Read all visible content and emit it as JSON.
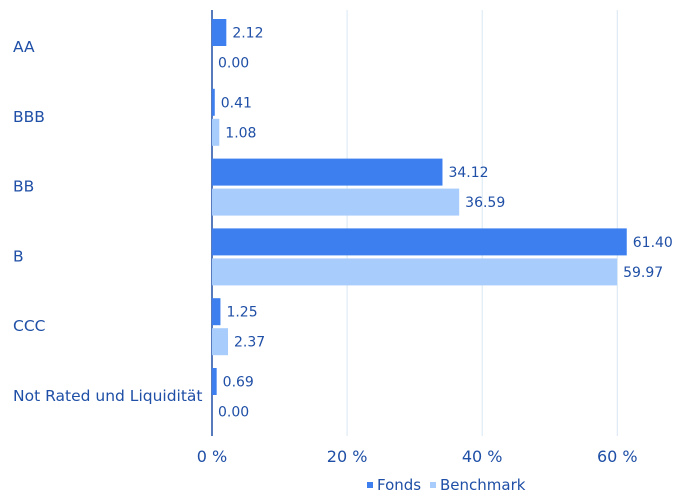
{
  "colors": {
    "fonds": "#3d7fef",
    "benchmark": "#a8cdfc",
    "text": "#1f4fa6",
    "grid": "#d8e6f3",
    "axis": "#1f4fa6"
  },
  "chart_data": {
    "type": "bar",
    "orientation": "horizontal",
    "categories": [
      "AA",
      "BBB",
      "BB",
      "B",
      "CCC",
      "Not Rated und Liquidität"
    ],
    "series": [
      {
        "name": "Fonds",
        "values": [
          2.12,
          0.41,
          34.12,
          61.4,
          1.25,
          0.69
        ],
        "labels": [
          "2.12",
          "0.41",
          "34.12",
          "61.40",
          "1.25",
          "0.69"
        ]
      },
      {
        "name": "Benchmark",
        "values": [
          0.0,
          1.08,
          36.59,
          59.97,
          2.37,
          0.0
        ],
        "labels": [
          "0.00",
          "1.08",
          "36.59",
          "59.97",
          "2.37",
          "0.00"
        ]
      }
    ],
    "x_ticks": [
      0,
      20,
      40,
      60
    ],
    "x_tick_labels": [
      "0 %",
      "20 %",
      "40 %",
      "60 %"
    ],
    "xlim": [
      0,
      70
    ],
    "grid": true,
    "legend_position": "bottom-right"
  }
}
